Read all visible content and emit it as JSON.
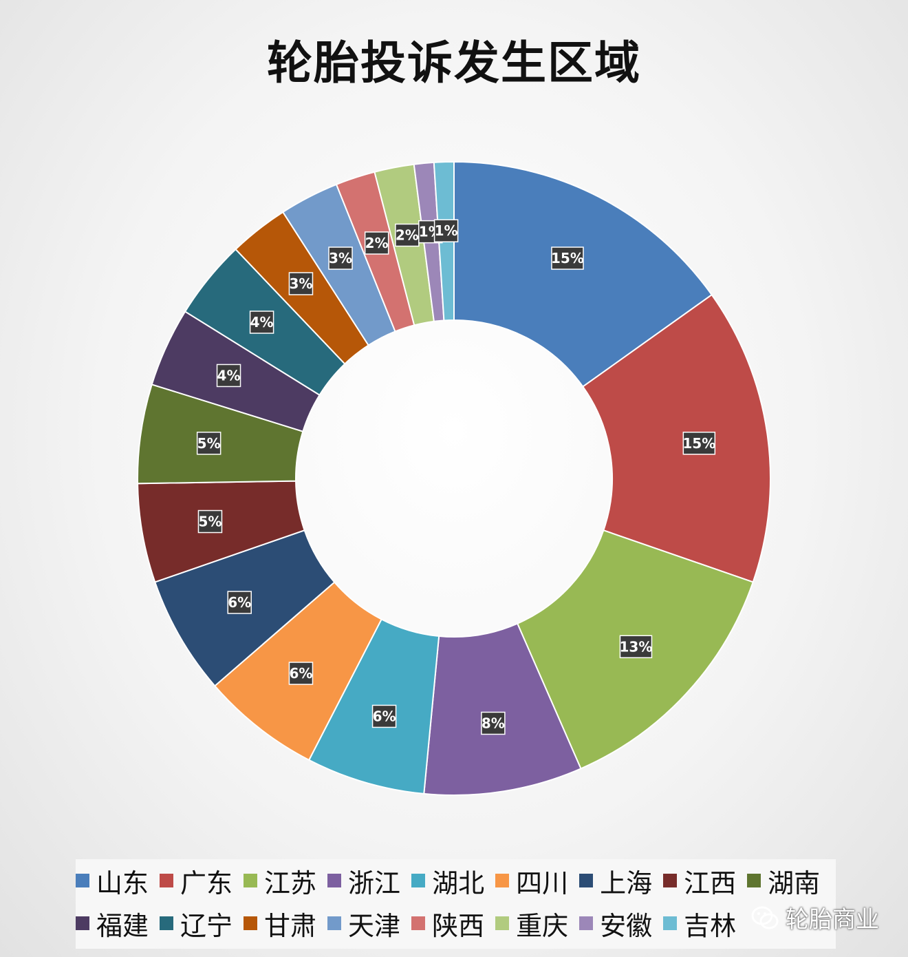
{
  "chart_data": {
    "type": "pie",
    "subtype": "donut",
    "title": "轮胎投诉发生区域",
    "legend_position": "bottom",
    "categories": [
      "山东",
      "广东",
      "江苏",
      "浙江",
      "湖北",
      "四川",
      "上海",
      "江西",
      "湖南",
      "福建",
      "辽宁",
      "甘肃",
      "天津",
      "陕西",
      "重庆",
      "安徽",
      "吉林"
    ],
    "values": [
      15,
      15,
      13,
      8,
      6,
      6,
      6,
      5,
      5,
      4,
      4,
      3,
      3,
      2,
      2,
      1,
      1
    ],
    "data_labels": [
      "15%",
      "15%",
      "13%",
      "8%",
      "6%",
      "6%",
      "6%",
      "5%",
      "5%",
      "4%",
      "4%",
      "3%",
      "3%",
      "2%",
      "2%",
      "1%",
      "1%"
    ],
    "colors": [
      "#4a7ebb",
      "#be4b48",
      "#98b954",
      "#7d60a0",
      "#46aac4",
      "#f79646",
      "#2c4d75",
      "#772c2a",
      "#5f7530",
      "#4d3b62",
      "#276a7c",
      "#b65708",
      "#729aca",
      "#d37270",
      "#b1cb7f",
      "#9c87b8",
      "#6dbcd3"
    ]
  },
  "watermark": {
    "icon": "wechat-icon",
    "text": "轮胎商业"
  }
}
